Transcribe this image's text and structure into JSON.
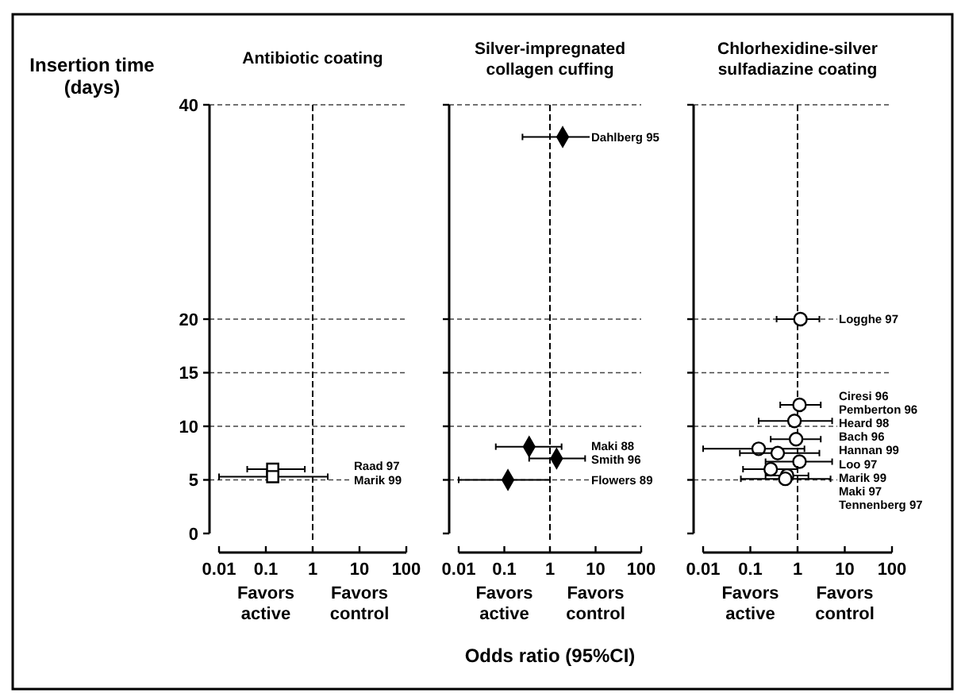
{
  "chart_data": [
    {
      "type": "scatter",
      "title": "Antibiotic coating",
      "ylabel": "Insertion time (days)",
      "marker": "square",
      "log": "x",
      "grid": "y",
      "line_style": "dashed",
      "xlim": [
        0.01,
        100
      ],
      "xticks": [
        0.01,
        0.1,
        1,
        10,
        100
      ],
      "ylim": [
        0,
        40
      ],
      "yticks": [
        0,
        5,
        10,
        15,
        20,
        40
      ],
      "ref_lines": [
        {
          "axis": "x",
          "value": 1
        }
      ],
      "annotations": [
        "Raad 97",
        "Marik 99",
        "Favors active",
        "Favors control"
      ],
      "series": [
        {
          "color": "#ffffff",
          "x": [
            0.14,
            0.14
          ],
          "values": [
            6,
            5.3
          ],
          "xerrors": [
            [
              0.04,
              0.68
            ],
            [
              0.01,
              2.1
            ]
          ]
        }
      ]
    },
    {
      "type": "scatter",
      "title": "Silver-impregnated collagen cuffing",
      "xlabel": "Odds ratio (95%CI)",
      "marker": "diamond",
      "log": "x",
      "grid": "y",
      "line_style": "dashed",
      "tick_labels": "x",
      "xlim": [
        0.01,
        100
      ],
      "xticks": [
        0.01,
        0.1,
        1,
        10,
        100
      ],
      "ylim": [
        0,
        40
      ],
      "yticks": [
        0,
        5,
        10,
        15,
        20,
        40
      ],
      "ref_lines": [
        {
          "axis": "x",
          "value": 1
        }
      ],
      "annotations": [
        "Dahlberg 95",
        "Maki 88",
        "Smith 96",
        "Flowers 89",
        "Favors active",
        "Favors control"
      ],
      "series": [
        {
          "color": "#000000",
          "x": [
            1.9,
            0.35,
            1.4,
            0.12
          ],
          "values": [
            37,
            8.1,
            7,
            5
          ],
          "xerrors": [
            [
              0.25,
              15
            ],
            [
              0.065,
              1.8
            ],
            [
              0.35,
              5.9
            ],
            [
              0.01,
              1
            ]
          ]
        }
      ]
    },
    {
      "type": "scatter",
      "title": "Chlorhexidine-silver sulfadiazine coating",
      "marker": "circle",
      "log": "x",
      "grid": "y",
      "line_style": "dashed",
      "tick_labels": "x",
      "xlim": [
        0.01,
        100
      ],
      "xticks": [
        0.01,
        0.1,
        1,
        10,
        100
      ],
      "ylim": [
        0,
        40
      ],
      "yticks": [
        0,
        5,
        10,
        15,
        20,
        40
      ],
      "ref_lines": [
        {
          "axis": "x",
          "value": 1
        }
      ],
      "annotations": [
        "Logghe 97",
        "Ciresi 96",
        "Pemberton 96",
        "Heard 98",
        "Bach 96",
        "Hannan 99",
        "Loo 97",
        "Marik 99",
        "Maki 97",
        "Tennenberg 97",
        "Favors active",
        "Favors control"
      ],
      "series": [
        {
          "color": "#ffffff",
          "x": [
            1.15,
            1.1,
            0.86,
            0.93,
            0.15,
            0.38,
            1.1,
            0.27,
            0.6,
            0.55
          ],
          "values": [
            20,
            12,
            10.5,
            8.8,
            7.9,
            7.5,
            6.7,
            6,
            5.4,
            5.1
          ],
          "xerrors": [
            [
              0.36,
              2.9
            ],
            [
              0.43,
              3.1
            ],
            [
              0.15,
              5.4
            ],
            [
              0.27,
              3.1
            ],
            [
              0.01,
              1.4
            ],
            [
              0.06,
              2.9
            ],
            [
              0.21,
              5.4
            ],
            [
              0.07,
              1
            ],
            [
              0.21,
              1.7
            ],
            [
              0.063,
              5
            ]
          ]
        }
      ]
    }
  ]
}
